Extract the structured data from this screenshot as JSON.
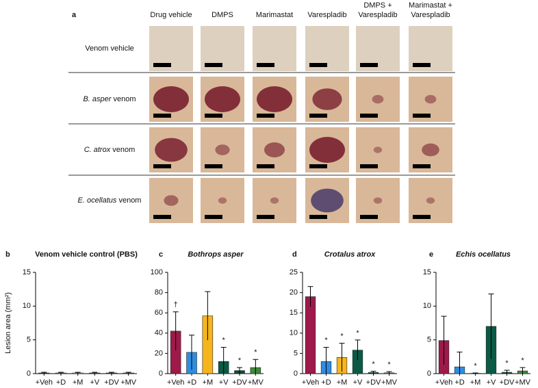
{
  "panel_a": {
    "label": "a",
    "columns": [
      "Drug vehicle",
      "DMPS",
      "Marimastat",
      "Varespladib",
      [
        "DMPS +",
        "Varespladib"
      ],
      [
        "Marimastat +",
        "Varespladib"
      ]
    ],
    "rows": [
      {
        "italic": null,
        "rest": "Venom vehicle"
      },
      {
        "italic": "B. asper",
        "rest": "venom"
      },
      {
        "italic": "C. atrox",
        "rest": "venom"
      },
      {
        "italic": "E. ocellatus",
        "rest": "venom"
      }
    ]
  },
  "chart_data": [
    {
      "type": "bar",
      "panel": "b",
      "title": "Venom vehicle control (PBS)",
      "y_label": "Lesion area (mm²)",
      "categories": [
        "+Veh",
        "+D",
        "+M",
        "+V",
        "+DV",
        "+MV"
      ],
      "values": [
        0.1,
        0.1,
        0.1,
        0.1,
        0.1,
        0.1
      ],
      "errors": [
        0.1,
        0.1,
        0.1,
        0.1,
        0.1,
        0.1
      ],
      "colors": [
        "#9e1a4a",
        "#2f8de0",
        "#f6b51c",
        "#0b5a45",
        "#0f4c38",
        "#3e8a3a"
      ],
      "markers": [
        null,
        null,
        null,
        null,
        null,
        null
      ],
      "ylim": [
        0,
        15
      ],
      "yticks": [
        0,
        5,
        10,
        15
      ]
    },
    {
      "type": "bar",
      "panel": "c",
      "title": "Bothrops asper",
      "categories": [
        "+Veh",
        "+D",
        "+M",
        "+V",
        "+DV",
        "+MV"
      ],
      "values": [
        42,
        21,
        57,
        12,
        3,
        6
      ],
      "errors": [
        19,
        17,
        24,
        14,
        3,
        8
      ],
      "colors": [
        "#9e1a4a",
        "#2f8de0",
        "#f6b51c",
        "#0b5a45",
        "#0f4c38",
        "#3e8a3a"
      ],
      "markers": [
        "†",
        null,
        null,
        "*",
        "*",
        "*"
      ],
      "ylim": [
        0,
        100
      ],
      "yticks": [
        0,
        20,
        40,
        60,
        80,
        100
      ]
    },
    {
      "type": "bar",
      "panel": "d",
      "title": "Crotalus atrox",
      "categories": [
        "+Veh",
        "+D",
        "+M",
        "+V",
        "+DV",
        "+MV"
      ],
      "values": [
        19,
        3,
        4,
        5.8,
        0.3,
        0.2
      ],
      "errors": [
        2.5,
        3.5,
        3.5,
        2.5,
        0.3,
        0.3
      ],
      "colors": [
        "#9e1a4a",
        "#2f8de0",
        "#f6b51c",
        "#0b5a45",
        "#0f4c38",
        "#3e8a3a"
      ],
      "markers": [
        null,
        "*",
        "*",
        "*",
        "*",
        "*"
      ],
      "ylim": [
        0,
        25
      ],
      "yticks": [
        0,
        5,
        10,
        15,
        20,
        25
      ]
    },
    {
      "type": "bar",
      "panel": "e",
      "title": "Echis ocellatus",
      "categories": [
        "+Veh",
        "+D",
        "+M",
        "+V",
        "+DV",
        "+MV"
      ],
      "values": [
        4.9,
        1.0,
        0.05,
        7.0,
        0.2,
        0.4
      ],
      "errors": [
        3.6,
        2.2,
        0.05,
        4.8,
        0.3,
        0.5
      ],
      "colors": [
        "#9e1a4a",
        "#2f8de0",
        "#f6b51c",
        "#0b5a45",
        "#0f4c38",
        "#3e8a3a"
      ],
      "markers": [
        null,
        null,
        "*",
        null,
        "*",
        "*"
      ],
      "ylim": [
        0,
        15
      ],
      "yticks": [
        0,
        5,
        10,
        15
      ]
    }
  ]
}
